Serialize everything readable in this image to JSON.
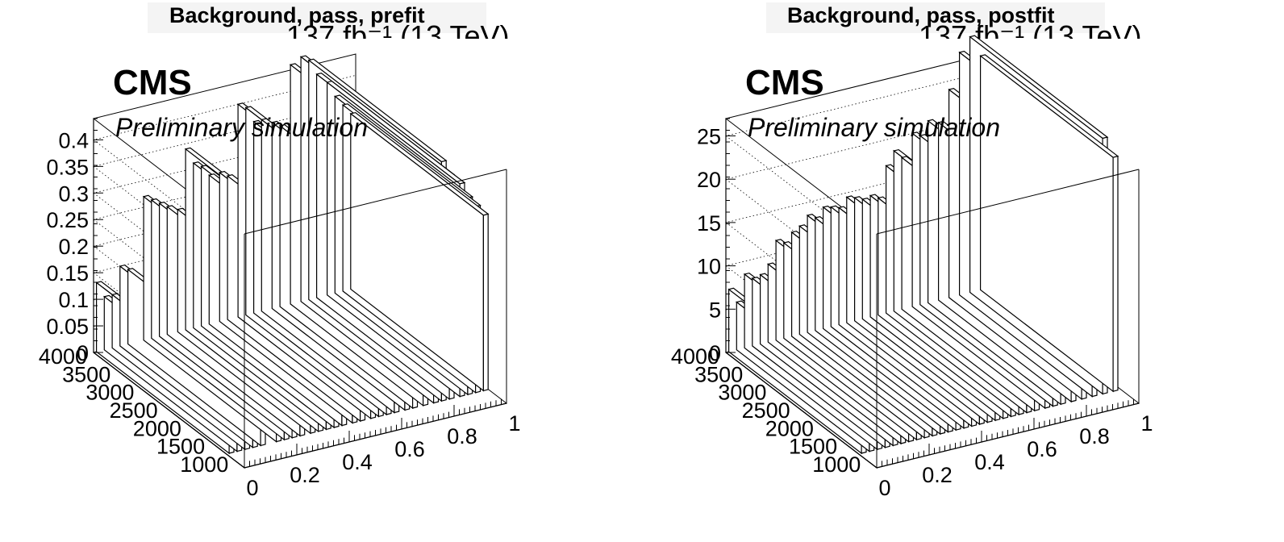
{
  "panels": [
    {
      "title": "Background, pass, prefit",
      "lumi": "137 fb⁻¹ (13 TeV)",
      "cms": "CMS",
      "subtitle": "Preliminary simulation"
    },
    {
      "title": "Background, pass, postfit",
      "lumi": "137 fb⁻¹ (13 TeV)",
      "cms": "CMS",
      "subtitle": "Preliminary simulation"
    }
  ],
  "chart_data": [
    {
      "type": "lego",
      "title": "Background, pass, prefit",
      "x_ticks": [
        "0",
        "0.2",
        "0.4",
        "0.6",
        "0.8",
        "1"
      ],
      "y_ticks": [
        "1000",
        "1500",
        "2000",
        "2500",
        "3000",
        "3500",
        "4000"
      ],
      "z_ticks": [
        "0",
        "0.05",
        "0.1",
        "0.15",
        "0.2",
        "0.25",
        "0.3",
        "0.35",
        "0.4"
      ],
      "xlim": [
        0,
        1
      ],
      "ylim": [
        800,
        4000
      ],
      "zlim": [
        0,
        0.44
      ],
      "grid": true,
      "bars": [
        {
          "x": 0.02,
          "z": 0.13
        },
        {
          "x": 0.05,
          "z": 0.1
        },
        {
          "x": 0.08,
          "z": 0.1
        },
        {
          "x": 0.11,
          "z": 0.15
        },
        {
          "x": 0.14,
          "z": 0.14
        },
        {
          "x": 0.2,
          "z": 0.27
        },
        {
          "x": 0.23,
          "z": 0.26
        },
        {
          "x": 0.26,
          "z": 0.25
        },
        {
          "x": 0.29,
          "z": 0.24
        },
        {
          "x": 0.33,
          "z": 0.23
        },
        {
          "x": 0.36,
          "z": 0.34
        },
        {
          "x": 0.39,
          "z": 0.31
        },
        {
          "x": 0.42,
          "z": 0.3
        },
        {
          "x": 0.45,
          "z": 0.28
        },
        {
          "x": 0.49,
          "z": 0.28
        },
        {
          "x": 0.52,
          "z": 0.27
        },
        {
          "x": 0.56,
          "z": 0.4
        },
        {
          "x": 0.59,
          "z": 0.39
        },
        {
          "x": 0.62,
          "z": 0.36
        },
        {
          "x": 0.65,
          "z": 0.36
        },
        {
          "x": 0.69,
          "z": 0.35
        },
        {
          "x": 0.72,
          "z": 0.34
        },
        {
          "x": 0.76,
          "z": 0.45
        },
        {
          "x": 0.8,
          "z": 0.46
        },
        {
          "x": 0.83,
          "z": 0.45
        },
        {
          "x": 0.86,
          "z": 0.42
        },
        {
          "x": 0.9,
          "z": 0.4
        },
        {
          "x": 0.93,
          "z": 0.37
        },
        {
          "x": 0.96,
          "z": 0.35
        },
        {
          "x": 0.99,
          "z": 0.33
        }
      ]
    },
    {
      "type": "lego",
      "title": "Background, pass, postfit",
      "x_ticks": [
        "0",
        "0.2",
        "0.4",
        "0.6",
        "0.8",
        "1"
      ],
      "y_ticks": [
        "1000",
        "1500",
        "2000",
        "2500",
        "3000",
        "3500",
        "4000"
      ],
      "z_ticks": [
        "0",
        "5",
        "10",
        "15",
        "20",
        "25"
      ],
      "xlim": [
        0,
        1
      ],
      "ylim": [
        800,
        4000
      ],
      "zlim": [
        0,
        27
      ],
      "grid": true,
      "bars": [
        {
          "x": 0.02,
          "z": 7.2
        },
        {
          "x": 0.05,
          "z": 5.5
        },
        {
          "x": 0.08,
          "z": 8.5
        },
        {
          "x": 0.11,
          "z": 7.8
        },
        {
          "x": 0.14,
          "z": 8.0
        },
        {
          "x": 0.17,
          "z": 9.0
        },
        {
          "x": 0.2,
          "z": 11.5
        },
        {
          "x": 0.23,
          "z": 11.0
        },
        {
          "x": 0.26,
          "z": 12.0
        },
        {
          "x": 0.29,
          "z": 12.5
        },
        {
          "x": 0.32,
          "z": 13.5
        },
        {
          "x": 0.35,
          "z": 13.0
        },
        {
          "x": 0.38,
          "z": 14.0
        },
        {
          "x": 0.41,
          "z": 13.8
        },
        {
          "x": 0.44,
          "z": 13.5
        },
        {
          "x": 0.47,
          "z": 14.5
        },
        {
          "x": 0.5,
          "z": 14.2
        },
        {
          "x": 0.53,
          "z": 13.8
        },
        {
          "x": 0.56,
          "z": 14.0
        },
        {
          "x": 0.59,
          "z": 13.5
        },
        {
          "x": 0.62,
          "z": 17.0
        },
        {
          "x": 0.65,
          "z": 18.5
        },
        {
          "x": 0.68,
          "z": 17.5
        },
        {
          "x": 0.72,
          "z": 20.0
        },
        {
          "x": 0.75,
          "z": 19.5
        },
        {
          "x": 0.78,
          "z": 21.0
        },
        {
          "x": 0.82,
          "z": 20.5
        },
        {
          "x": 0.86,
          "z": 24.0
        },
        {
          "x": 0.9,
          "z": 28.0
        },
        {
          "x": 0.94,
          "z": 29.5
        },
        {
          "x": 0.98,
          "z": 27.0
        }
      ]
    }
  ]
}
